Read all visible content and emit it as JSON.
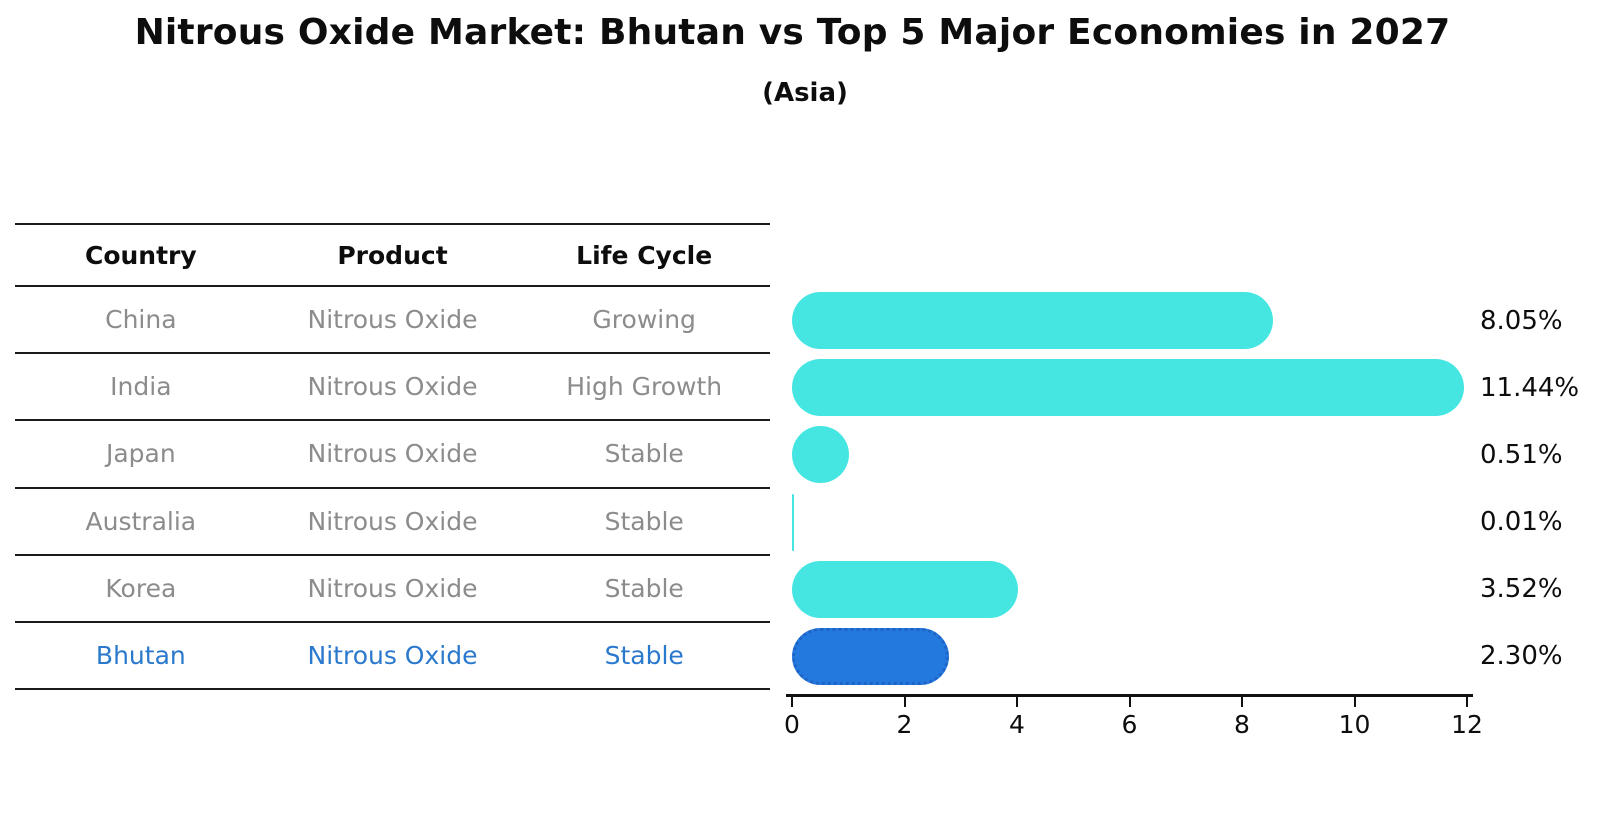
{
  "header": {
    "title": "Nitrous Oxide Market: Bhutan vs Top 5 Major Economies in 2027",
    "subtitle": "(Asia)"
  },
  "table": {
    "columns": [
      "Country",
      "Product",
      "Life Cycle"
    ],
    "rows": [
      {
        "country": "China",
        "product": "Nitrous Oxide",
        "life_cycle": "Growing",
        "highlight": false
      },
      {
        "country": "India",
        "product": "Nitrous Oxide",
        "life_cycle": "High Growth",
        "highlight": false
      },
      {
        "country": "Japan",
        "product": "Nitrous Oxide",
        "life_cycle": "Stable",
        "highlight": false
      },
      {
        "country": "Australia",
        "product": "Nitrous Oxide",
        "life_cycle": "Stable",
        "highlight": false
      },
      {
        "country": "Korea",
        "product": "Nitrous Oxide",
        "life_cycle": "Stable",
        "highlight": false
      },
      {
        "country": "Bhutan",
        "product": "Nitrous Oxide",
        "life_cycle": "Stable",
        "highlight": true
      }
    ]
  },
  "chart_data": {
    "type": "bar",
    "orientation": "horizontal",
    "title": "Nitrous Oxide Market: Bhutan vs Top 5 Major Economies in 2027",
    "subtitle": "(Asia)",
    "categories": [
      "China",
      "India",
      "Japan",
      "Australia",
      "Korea",
      "Bhutan"
    ],
    "values": [
      8.05,
      11.44,
      0.51,
      0.01,
      3.52,
      2.3
    ],
    "labels": [
      "8.05%",
      "11.44%",
      "0.51%",
      "0.01%",
      "3.52%",
      "2.30%"
    ],
    "xlim": [
      0,
      12
    ],
    "xticks": [
      0,
      2,
      4,
      6,
      8,
      10,
      12
    ],
    "grid": false,
    "legend": false,
    "bar_color": "#45E6E1",
    "highlight_index": 5,
    "highlight_color": "#2479DE",
    "highlight_border_color": "#1E63C6"
  },
  "colors": {
    "text_default": "#0d0d0d",
    "text_muted": "#8c8c8c",
    "highlight_text": "#2A79CC",
    "line": "#1a1a1a"
  }
}
